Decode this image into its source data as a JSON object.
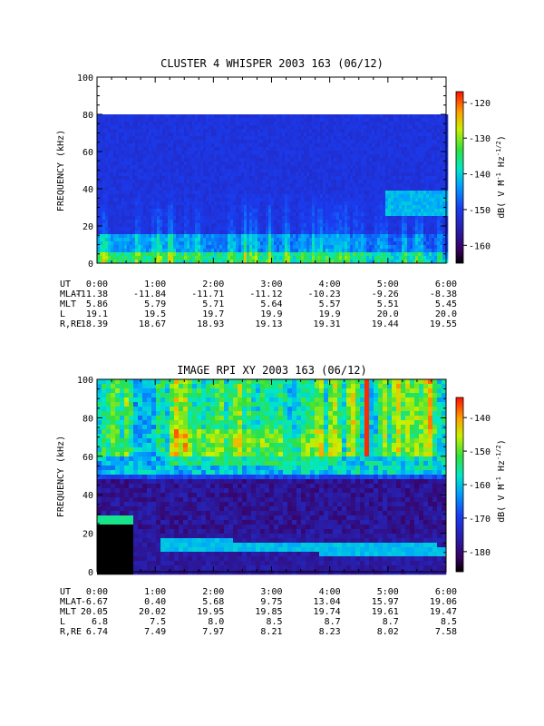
{
  "chart_data": [
    {
      "type": "heatmap",
      "title": "CLUSTER 4 WHISPER 2003 163 (06/12)",
      "ylabel": "FREQUENCY (kHz)",
      "ylim": [
        0,
        100
      ],
      "y_ticks": [
        "0",
        "20",
        "40",
        "60",
        "80",
        "100"
      ],
      "data_ymax": 80,
      "x_ticks": [
        "0:00",
        "1:00",
        "2:00",
        "3:00",
        "4:00",
        "5:00",
        "6:00"
      ],
      "colorbar": {
        "label": "dB( V M⁻¹ Hz⁻¹ᐟ²)",
        "label_parts": [
          "dB( V M",
          "-1",
          " Hz",
          "-1/2",
          ")"
        ],
        "ticks": [
          "-120",
          "-130",
          "-140",
          "-150",
          "-160"
        ],
        "min": -165,
        "max": -117
      },
      "ephemeris": {
        "labels": [
          "UT",
          "MLAT",
          "MLT",
          "L",
          "R,RE"
        ],
        "rows": [
          [
            "0:00",
            "1:00",
            "2:00",
            "3:00",
            "4:00",
            "5:00",
            "6:00"
          ],
          [
            "-11.38",
            "-11.84",
            "-11.71",
            "-11.12",
            "-10.23",
            "-9.26",
            "-8.38"
          ],
          [
            "5.86",
            "5.79",
            "5.71",
            "5.64",
            "5.57",
            "5.51",
            "5.45"
          ],
          [
            "19.1",
            "19.5",
            "19.7",
            "19.9",
            "19.9",
            "20.0",
            "20.0"
          ],
          [
            "18.39",
            "18.67",
            "18.93",
            "19.13",
            "19.31",
            "19.44",
            "19.55"
          ]
        ]
      }
    },
    {
      "type": "heatmap",
      "title": "IMAGE RPI XY 2003 163 (06/12)",
      "ylabel": "FREQUENCY (kHz)",
      "ylim": [
        0,
        100
      ],
      "y_ticks": [
        "0",
        "20",
        "40",
        "60",
        "80",
        "100"
      ],
      "data_ymax": 100,
      "x_ticks": [
        "0:00",
        "1:00",
        "2:00",
        "3:00",
        "4:00",
        "5:00",
        "6:00"
      ],
      "colorbar": {
        "label_parts": [
          "dB( V M",
          "-1",
          " Hz",
          "-1/2",
          ")"
        ],
        "ticks": [
          "-140",
          "-150",
          "-160",
          "-170",
          "-180"
        ],
        "min": -186,
        "max": -134
      },
      "ephemeris": {
        "labels": [
          "UT",
          "MLAT",
          "MLT",
          "L",
          "R,RE"
        ],
        "rows": [
          [
            "0:00",
            "1:00",
            "2:00",
            "3:00",
            "4:00",
            "5:00",
            "6:00"
          ],
          [
            "-6.67",
            "0.40",
            "5.68",
            "9.75",
            "13.04",
            "15.97",
            "19.06"
          ],
          [
            "20.05",
            "20.02",
            "19.95",
            "19.85",
            "19.74",
            "19.61",
            "19.47"
          ],
          [
            "6.8",
            "7.5",
            "8.0",
            "8.5",
            "8.7",
            "8.7",
            "8.5"
          ],
          [
            "6.74",
            "7.49",
            "7.97",
            "8.21",
            "8.23",
            "8.02",
            "7.58"
          ]
        ]
      }
    }
  ]
}
